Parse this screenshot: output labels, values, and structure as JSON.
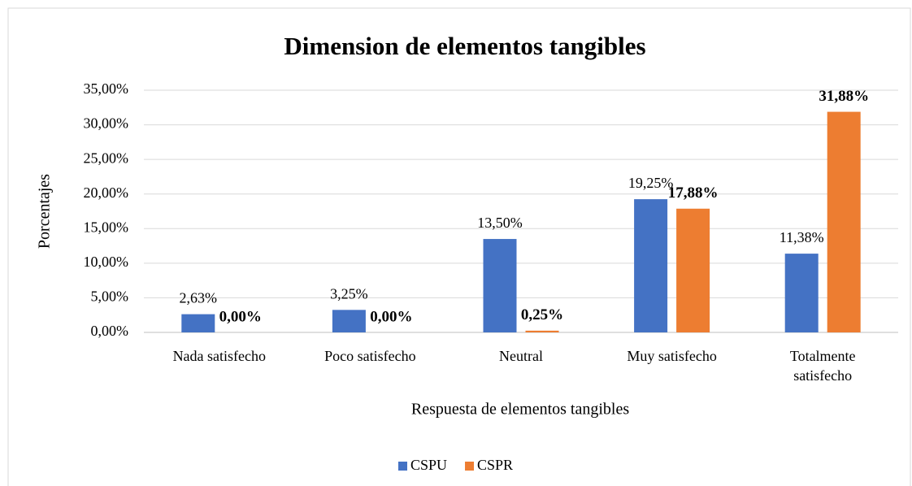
{
  "chart_data": {
    "type": "bar",
    "title": "Dimension de elementos tangibles",
    "x_label": "Respuesta de elementos tangibles",
    "y_label": "Porcentajes",
    "categories": [
      "Nada satisfecho",
      "Poco satisfecho",
      "Neutral",
      "Muy satisfecho",
      "Totalmente satisfecho"
    ],
    "series": [
      {
        "name": "CSPU",
        "color": "#4472c4",
        "values": [
          2.63,
          3.25,
          13.5,
          19.25,
          11.38
        ],
        "value_labels": [
          "2,63%",
          "3,25%",
          "13,50%",
          "19,25%",
          "11,38%"
        ]
      },
      {
        "name": "CSPR",
        "color": "#ed7d31",
        "values": [
          0,
          0,
          0.25,
          17.88,
          31.88
        ],
        "value_labels": [
          "0,00%",
          "0,00%",
          "0,25%",
          "17,88%",
          "31,88%"
        ]
      }
    ],
    "ylim": [
      0,
      35
    ],
    "yticks": [
      {
        "value": 0,
        "label": "0,00%"
      },
      {
        "value": 5,
        "label": "5,00%"
      },
      {
        "value": 10,
        "label": "10,00%"
      },
      {
        "value": 15,
        "label": "15,00%"
      },
      {
        "value": 20,
        "label": "20,00%"
      },
      {
        "value": 25,
        "label": "25,00%"
      },
      {
        "value": 30,
        "label": "30,00%"
      },
      {
        "value": 35,
        "label": "35,00%"
      }
    ],
    "grid": true,
    "legend": "bottom"
  }
}
